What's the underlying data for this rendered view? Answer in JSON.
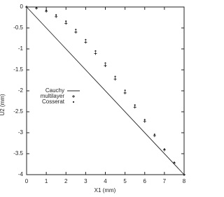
{
  "chart_data": {
    "type": "line",
    "xlabel": "X1 (mm)",
    "ylabel": "U2 (mm)",
    "xlim": [
      0,
      8
    ],
    "ylim": [
      -4,
      0
    ],
    "xticks": [
      0,
      1,
      2,
      3,
      4,
      5,
      6,
      7,
      8
    ],
    "yticks": [
      0,
      -0.5,
      -1,
      -1.5,
      -2,
      -2.5,
      -3,
      -3.5,
      -4
    ],
    "grid": false,
    "legend": "center-left",
    "series": [
      {
        "name": "Cauchy",
        "color": "#222222",
        "marker": "line",
        "x": [
          0,
          8
        ],
        "values": [
          0,
          -4
        ]
      },
      {
        "name": "multilayer",
        "color": "#222222",
        "marker": "plus",
        "x": [
          0,
          0.5,
          1,
          1.5,
          2,
          2.5,
          3,
          3.5,
          4,
          4.5,
          5,
          5.5,
          6,
          6.5,
          7,
          7.5,
          8
        ],
        "values": [
          0,
          -0.03,
          -0.1,
          -0.23,
          -0.39,
          -0.6,
          -0.84,
          -1.11,
          -1.4,
          -1.72,
          -2.05,
          -2.39,
          -2.73,
          -3.07,
          -3.41,
          -3.72,
          -4
        ]
      },
      {
        "name": "Cosserat",
        "color": "#222222",
        "marker": "dot",
        "x": [
          0,
          0.5,
          1,
          1.5,
          2,
          2.5,
          3,
          3.5,
          4,
          4.5,
          5,
          5.5,
          6,
          6.5,
          7,
          7.5,
          8
        ],
        "values": [
          0,
          -0.02,
          -0.08,
          -0.19,
          -0.34,
          -0.54,
          -0.78,
          -1.05,
          -1.34,
          -1.66,
          -1.99,
          -2.34,
          -2.69,
          -3.04,
          -3.39,
          -3.71,
          -4
        ]
      }
    ]
  }
}
